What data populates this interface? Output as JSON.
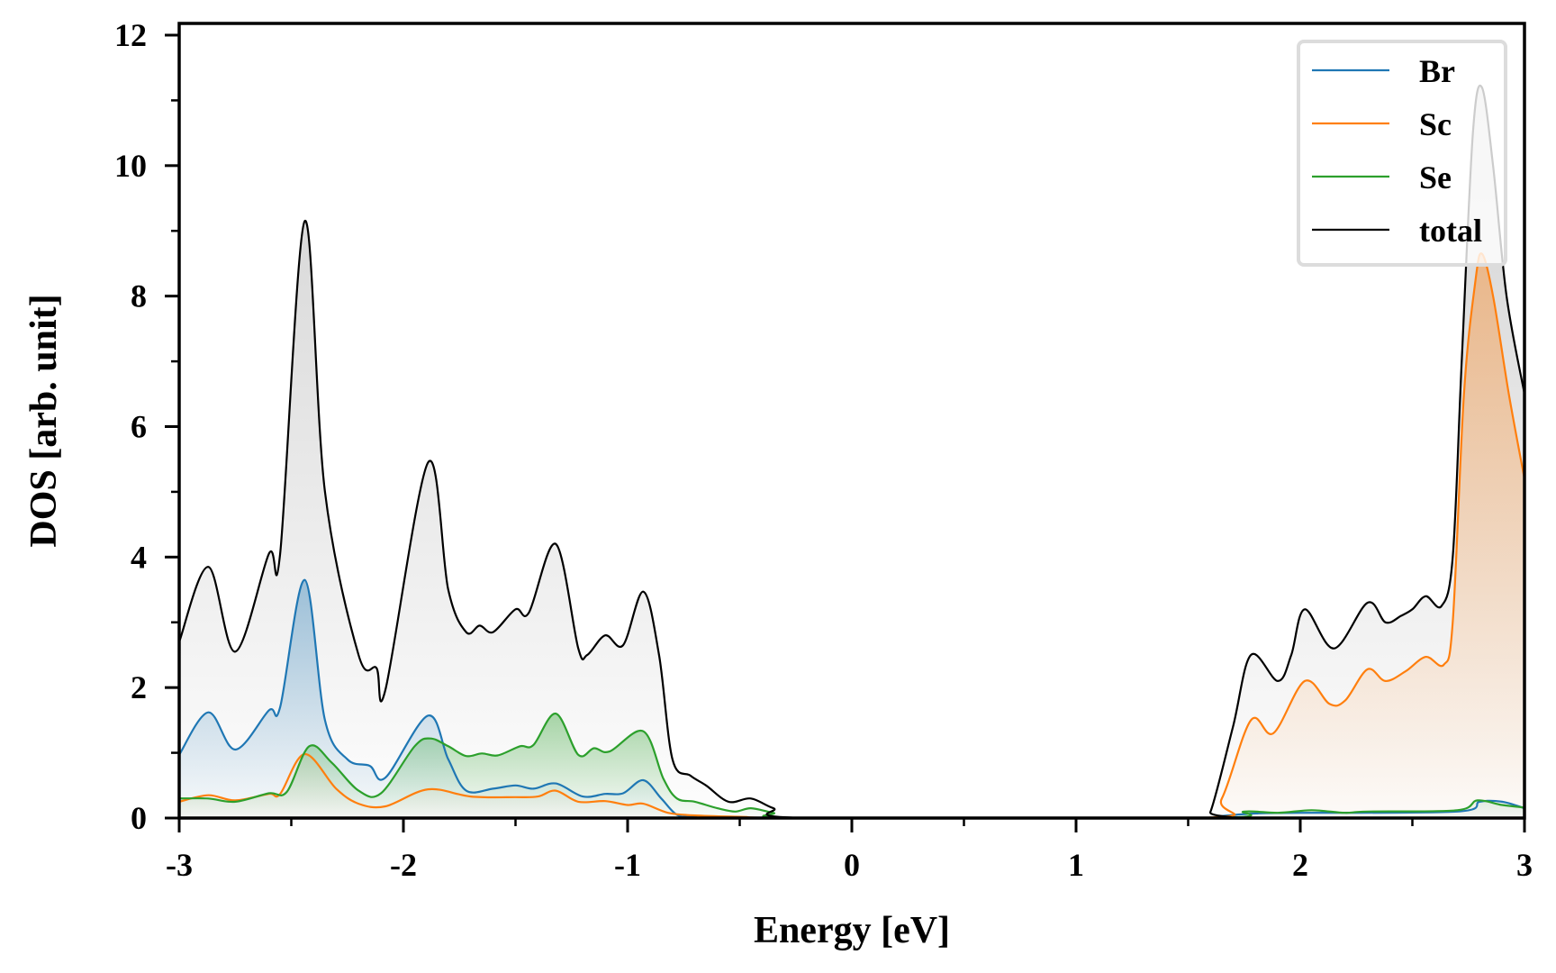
{
  "chart_data": {
    "type": "line",
    "title": "",
    "xlabel": "Energy [eV]",
    "ylabel": "DOS [arb. unit]",
    "xlim": [
      -3,
      3
    ],
    "ylim": [
      0,
      12
    ],
    "xticks": [
      -3,
      -2,
      -1,
      0,
      1,
      2,
      3
    ],
    "xtick_labels": [
      "-3",
      "-2",
      "-1",
      "0",
      "1",
      "2",
      "3"
    ],
    "yticks": [
      0,
      2,
      4,
      6,
      8,
      10,
      12
    ],
    "ytick_labels": [
      "0",
      "2",
      "4",
      "6",
      "8",
      "10",
      "12"
    ],
    "grid": false,
    "legend_position": "top-right",
    "filled": true,
    "series": [
      {
        "name": "Br",
        "color": "#1f77b4",
        "points": [
          [
            -3,
            0.97
          ],
          [
            -2.87,
            1.62
          ],
          [
            -2.75,
            1.05
          ],
          [
            -2.6,
            1.65
          ],
          [
            -2.55,
            1.7
          ],
          [
            -2.44,
            3.65
          ],
          [
            -2.35,
            1.5
          ],
          [
            -2.25,
            0.9
          ],
          [
            -2.15,
            0.8
          ],
          [
            -2.08,
            0.62
          ],
          [
            -1.89,
            1.57
          ],
          [
            -1.8,
            0.9
          ],
          [
            -1.72,
            0.42
          ],
          [
            -1.6,
            0.45
          ],
          [
            -1.5,
            0.5
          ],
          [
            -1.42,
            0.45
          ],
          [
            -1.32,
            0.53
          ],
          [
            -1.2,
            0.33
          ],
          [
            -1.1,
            0.37
          ],
          [
            -1.02,
            0.38
          ],
          [
            -0.93,
            0.58
          ],
          [
            -0.85,
            0.3
          ],
          [
            -0.78,
            0.05
          ],
          [
            -0.7,
            0.02
          ],
          [
            -0.5,
            0
          ],
          [
            1.55,
            0
          ],
          [
            1.65,
            0.03
          ],
          [
            1.8,
            0.07
          ],
          [
            2.0,
            0.08
          ],
          [
            2.7,
            0.1
          ],
          [
            2.8,
            0.25
          ],
          [
            2.9,
            0.25
          ],
          [
            3.0,
            0.15
          ]
        ]
      },
      {
        "name": "Sc",
        "color": "#ff7f0e",
        "points": [
          [
            -3,
            0.25
          ],
          [
            -2.87,
            0.35
          ],
          [
            -2.75,
            0.27
          ],
          [
            -2.6,
            0.37
          ],
          [
            -2.55,
            0.37
          ],
          [
            -2.44,
            0.98
          ],
          [
            -2.3,
            0.45
          ],
          [
            -2.2,
            0.22
          ],
          [
            -2.08,
            0.18
          ],
          [
            -1.89,
            0.44
          ],
          [
            -1.7,
            0.33
          ],
          [
            -1.5,
            0.32
          ],
          [
            -1.4,
            0.33
          ],
          [
            -1.32,
            0.42
          ],
          [
            -1.22,
            0.25
          ],
          [
            -1.1,
            0.26
          ],
          [
            -1.0,
            0.2
          ],
          [
            -0.93,
            0.22
          ],
          [
            -0.82,
            0.08
          ],
          [
            -0.7,
            0.04
          ],
          [
            -0.5,
            0.02
          ],
          [
            -0.2,
            0
          ],
          [
            1.55,
            0
          ],
          [
            1.65,
            0.3
          ],
          [
            1.78,
            1.5
          ],
          [
            1.88,
            1.3
          ],
          [
            2.02,
            2.1
          ],
          [
            2.13,
            1.75
          ],
          [
            2.2,
            1.8
          ],
          [
            2.3,
            2.28
          ],
          [
            2.38,
            2.1
          ],
          [
            2.47,
            2.25
          ],
          [
            2.56,
            2.47
          ],
          [
            2.64,
            2.35
          ],
          [
            2.68,
            3.0
          ],
          [
            2.73,
            6.5
          ],
          [
            2.78,
            8.2
          ],
          [
            2.81,
            8.65
          ],
          [
            2.86,
            8.0
          ],
          [
            2.93,
            6.5
          ],
          [
            3.0,
            5.2
          ]
        ]
      },
      {
        "name": "Se",
        "color": "#2ca02c",
        "points": [
          [
            -3,
            0.3
          ],
          [
            -2.87,
            0.3
          ],
          [
            -2.75,
            0.25
          ],
          [
            -2.6,
            0.38
          ],
          [
            -2.52,
            0.4
          ],
          [
            -2.42,
            1.1
          ],
          [
            -2.32,
            0.85
          ],
          [
            -2.2,
            0.42
          ],
          [
            -2.1,
            0.38
          ],
          [
            -1.95,
            1.1
          ],
          [
            -1.88,
            1.22
          ],
          [
            -1.8,
            1.1
          ],
          [
            -1.72,
            0.95
          ],
          [
            -1.65,
            0.99
          ],
          [
            -1.58,
            0.96
          ],
          [
            -1.48,
            1.1
          ],
          [
            -1.42,
            1.12
          ],
          [
            -1.32,
            1.6
          ],
          [
            -1.22,
            0.97
          ],
          [
            -1.15,
            1.07
          ],
          [
            -1.08,
            1.02
          ],
          [
            -0.93,
            1.33
          ],
          [
            -0.84,
            0.6
          ],
          [
            -0.78,
            0.3
          ],
          [
            -0.7,
            0.25
          ],
          [
            -0.6,
            0.15
          ],
          [
            -0.52,
            0.1
          ],
          [
            -0.45,
            0.15
          ],
          [
            -0.35,
            0.08
          ],
          [
            -0.22,
            0
          ],
          [
            1.6,
            0
          ],
          [
            1.75,
            0.1
          ],
          [
            1.9,
            0.08
          ],
          [
            2.05,
            0.12
          ],
          [
            2.2,
            0.08
          ],
          [
            2.3,
            0.1
          ],
          [
            2.7,
            0.12
          ],
          [
            2.79,
            0.27
          ],
          [
            2.9,
            0.2
          ],
          [
            3.0,
            0.16
          ]
        ]
      },
      {
        "name": "total",
        "color": "#000000",
        "points": [
          [
            -3,
            2.7
          ],
          [
            -2.87,
            3.85
          ],
          [
            -2.75,
            2.55
          ],
          [
            -2.6,
            4.05
          ],
          [
            -2.55,
            4.05
          ],
          [
            -2.44,
            9.15
          ],
          [
            -2.35,
            5.0
          ],
          [
            -2.2,
            2.5
          ],
          [
            -2.12,
            2.3
          ],
          [
            -2.08,
            1.97
          ],
          [
            -1.89,
            5.45
          ],
          [
            -1.8,
            3.5
          ],
          [
            -1.72,
            2.85
          ],
          [
            -1.66,
            2.95
          ],
          [
            -1.6,
            2.85
          ],
          [
            -1.5,
            3.2
          ],
          [
            -1.44,
            3.15
          ],
          [
            -1.32,
            4.2
          ],
          [
            -1.22,
            2.6
          ],
          [
            -1.18,
            2.5
          ],
          [
            -1.1,
            2.8
          ],
          [
            -1.02,
            2.65
          ],
          [
            -0.93,
            3.47
          ],
          [
            -0.86,
            2.5
          ],
          [
            -0.8,
            0.9
          ],
          [
            -0.72,
            0.65
          ],
          [
            -0.65,
            0.5
          ],
          [
            -0.55,
            0.25
          ],
          [
            -0.45,
            0.3
          ],
          [
            -0.35,
            0.15
          ],
          [
            -0.2,
            0
          ],
          [
            1.55,
            0
          ],
          [
            1.6,
            0.1
          ],
          [
            1.7,
            1.4
          ],
          [
            1.78,
            2.5
          ],
          [
            1.9,
            2.1
          ],
          [
            1.96,
            2.5
          ],
          [
            2.02,
            3.2
          ],
          [
            2.15,
            2.6
          ],
          [
            2.3,
            3.3
          ],
          [
            2.38,
            3.0
          ],
          [
            2.45,
            3.1
          ],
          [
            2.5,
            3.2
          ],
          [
            2.56,
            3.4
          ],
          [
            2.63,
            3.25
          ],
          [
            2.68,
            4.0
          ],
          [
            2.72,
            7.0
          ],
          [
            2.77,
            10.5
          ],
          [
            2.81,
            11.2
          ],
          [
            2.86,
            10.0
          ],
          [
            2.92,
            8.0
          ],
          [
            3.0,
            6.5
          ]
        ]
      }
    ]
  }
}
